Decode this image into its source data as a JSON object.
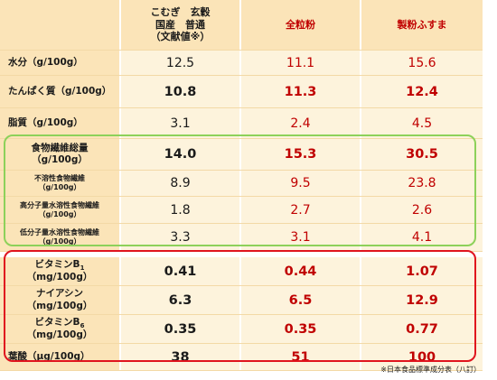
{
  "header": {
    "col0": "",
    "col1_line1": "こむぎ　玄穀",
    "col1_line2": "国産　普通",
    "col1_line3": "（文献値※）",
    "col2": "全粒粉",
    "col3": "製粉ふすま"
  },
  "rows": [
    {
      "label": "水分（g/100g）",
      "v1": "12.5",
      "v2": "11.1",
      "v3": "15.6"
    },
    {
      "label": "たんぱく質（g/100g）",
      "v1": "10.8",
      "v2": "11.3",
      "v3": "12.4"
    },
    {
      "label": "脂質（g/100g）",
      "v1": "3.1",
      "v2": "2.4",
      "v3": "4.5"
    },
    {
      "label_l1": "食物繊維総量",
      "label_l2": "（g/100g）",
      "v1": "14.0",
      "v2": "15.3",
      "v3": "30.5"
    },
    {
      "label_l1": "不溶性食物繊維",
      "label_l2": "（g/100g）",
      "v1": "8.9",
      "v2": "9.5",
      "v3": "23.8"
    },
    {
      "label_l1": "高分子量水溶性食物繊維",
      "label_l2": "（g/100g）",
      "v1": "1.8",
      "v2": "2.7",
      "v3": "2.6"
    },
    {
      "label_l1": "低分子量水溶性食物繊維",
      "label_l2": "（g/100g）",
      "v1": "3.3",
      "v2": "3.1",
      "v3": "4.1"
    },
    {
      "label_l1": "ビタミンB",
      "label_sub": "1",
      "label_l2": "（mg/100g）",
      "v1": "0.41",
      "v2": "0.44",
      "v3": "1.07"
    },
    {
      "label_l1": "ナイアシン",
      "label_l2": "（mg/100g）",
      "v1": "6.3",
      "v2": "6.5",
      "v3": "12.9"
    },
    {
      "label_l1": "ビタミンB",
      "label_sub": "6",
      "label_l2": "（mg/100g）",
      "v1": "0.35",
      "v2": "0.35",
      "v3": "0.77"
    },
    {
      "label": "葉酸（μg/100g）",
      "v1": "38",
      "v2": "51",
      "v3": "100"
    }
  ],
  "footnote": "※日本食品標準成分表（八訂）",
  "colors": {
    "header_bg": "#fbe4b8",
    "cell_bg": "#fdf3dc",
    "red_text": "#c00000",
    "green_box": "#8dd15a",
    "red_box": "#e0141e"
  }
}
